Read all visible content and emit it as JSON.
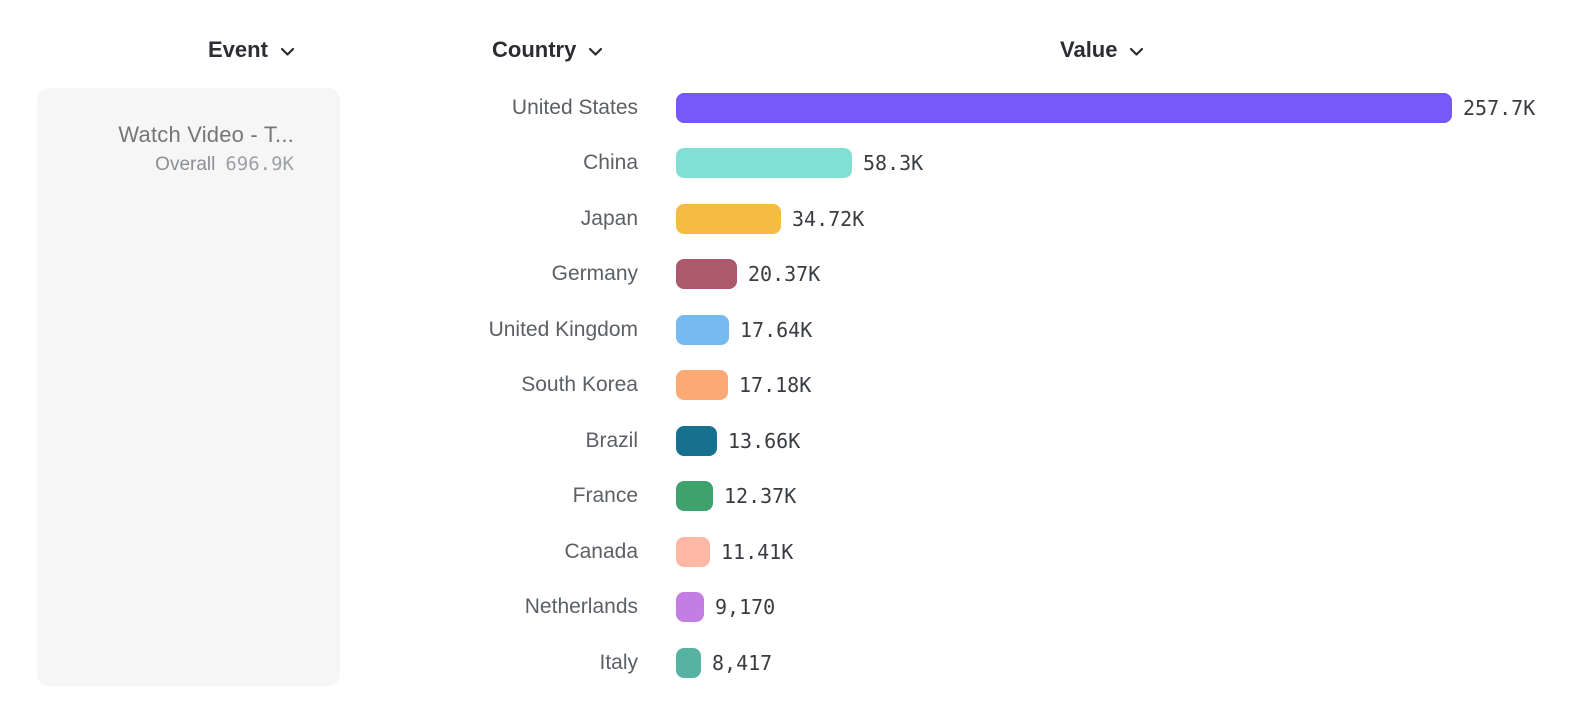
{
  "columns": {
    "event": {
      "label": "Event"
    },
    "country": {
      "label": "Country"
    },
    "value": {
      "label": "Value"
    }
  },
  "event_card": {
    "name": "Watch Video - T...",
    "metric_label": "Overall",
    "metric_value": "696.9K"
  },
  "chart_data": {
    "type": "bar",
    "orientation": "horizontal",
    "title": "",
    "xlabel": "Value",
    "ylabel": "Country",
    "xlim": [
      0,
      257700
    ],
    "grid": false,
    "categories": [
      "United States",
      "China",
      "Japan",
      "Germany",
      "United Kingdom",
      "South Korea",
      "Brazil",
      "France",
      "Canada",
      "Netherlands",
      "Italy"
    ],
    "values": [
      257700,
      58300,
      34720,
      20370,
      17640,
      17180,
      13660,
      12370,
      11410,
      9170,
      8417
    ],
    "value_labels": [
      "257.7K",
      "58.3K",
      "34.72K",
      "20.37K",
      "17.64K",
      "17.18K",
      "13.66K",
      "12.37K",
      "11.41K",
      "9,170",
      "8,417"
    ],
    "bar_colors": [
      "#7659F8",
      "#7FE0D3",
      "#F5BB42",
      "#AC5A6B",
      "#75BBF0",
      "#FAAA72",
      "#16718F",
      "#3DA26C",
      "#FCB7A5",
      "#C47EE3",
      "#58B2A2"
    ]
  },
  "icons": {
    "chevron_down": "chevron-down"
  },
  "colors": {
    "card_background": "#f6f6f6",
    "header_text": "#2b2d31",
    "country_label_text": "#5c6065",
    "value_text": "#393c40",
    "event_name_text": "#767676",
    "metric_label_text": "#8b8e92",
    "metric_value_text": "#9da0a4"
  }
}
